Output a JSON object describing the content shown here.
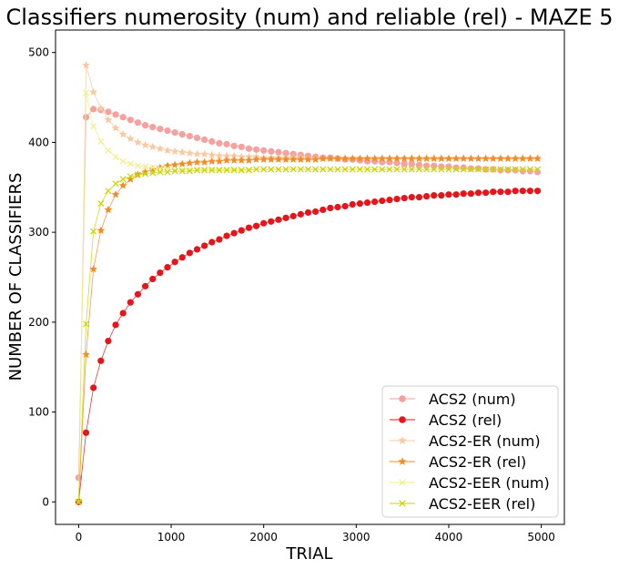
{
  "chart_data": {
    "type": "line",
    "title": "Classifiers numerosity (num) and reliable (rel) - MAZE 5",
    "xlabel": "TRIAL",
    "ylabel": "NUMBER OF CLASSIFIERS",
    "xlim": [
      -250,
      5250
    ],
    "ylim": [
      -25,
      525
    ],
    "xticks": [
      0,
      1000,
      2000,
      3000,
      4000,
      5000
    ],
    "yticks": [
      0,
      100,
      200,
      300,
      400,
      500
    ],
    "grid": false,
    "legend_position": "lower-right",
    "series": [
      {
        "name": "ACS2 (num)",
        "color": "#f4a19f",
        "marker": "circle",
        "x": [
          0,
          80,
          160,
          240,
          320,
          400,
          480,
          560,
          640,
          720,
          800,
          880,
          960,
          1040,
          1120,
          1200,
          1280,
          1360,
          1440,
          1520,
          1600,
          1680,
          1760,
          1840,
          1920,
          2000,
          2080,
          2160,
          2240,
          2320,
          2400,
          2480,
          2560,
          2640,
          2720,
          2800,
          2880,
          2960,
          3040,
          3120,
          3200,
          3280,
          3360,
          3440,
          3520,
          3600,
          3680,
          3760,
          3840,
          3920,
          4000,
          4080,
          4160,
          4240,
          4320,
          4400,
          4480,
          4560,
          4640,
          4720,
          4800,
          4880,
          4960
        ],
        "y": [
          27,
          428,
          437,
          436,
          434,
          431,
          428,
          425,
          422,
          419,
          417,
          415,
          413,
          411,
          409,
          407,
          405,
          403,
          401,
          399,
          398,
          396,
          395,
          393,
          392,
          391,
          390,
          389,
          388,
          387,
          386,
          385,
          384,
          383,
          383,
          382,
          381,
          381,
          380,
          379,
          379,
          378,
          378,
          377,
          376,
          376,
          375,
          374,
          374,
          373,
          373,
          372,
          372,
          371,
          371,
          370,
          370,
          369,
          369,
          369,
          368,
          368,
          367
        ]
      },
      {
        "name": "ACS2 (rel)",
        "color": "#e6141b",
        "marker": "circle",
        "x": [
          0,
          80,
          160,
          240,
          320,
          400,
          480,
          560,
          640,
          720,
          800,
          880,
          960,
          1040,
          1120,
          1200,
          1280,
          1360,
          1440,
          1520,
          1600,
          1680,
          1760,
          1840,
          1920,
          2000,
          2080,
          2160,
          2240,
          2320,
          2400,
          2480,
          2560,
          2640,
          2720,
          2800,
          2880,
          2960,
          3040,
          3120,
          3200,
          3280,
          3360,
          3440,
          3520,
          3600,
          3680,
          3760,
          3840,
          3920,
          4000,
          4080,
          4160,
          4240,
          4320,
          4400,
          4480,
          4560,
          4640,
          4720,
          4800,
          4880,
          4960
        ],
        "y": [
          0,
          77,
          127,
          157,
          179,
          197,
          210,
          222,
          231,
          240,
          248,
          255,
          261,
          267,
          272,
          277,
          281,
          285,
          289,
          292,
          296,
          299,
          302,
          305,
          307,
          310,
          312,
          314,
          316,
          318,
          320,
          322,
          323,
          325,
          327,
          328,
          329,
          331,
          332,
          333,
          334,
          335,
          336,
          337,
          338,
          339,
          339,
          340,
          341,
          341,
          342,
          342,
          343,
          343,
          344,
          344,
          345,
          345,
          345,
          346,
          346,
          346,
          346
        ]
      },
      {
        "name": "ACS2-ER (num)",
        "color": "#f9c9a0",
        "marker": "star",
        "x": [
          0,
          80,
          160,
          240,
          320,
          400,
          480,
          560,
          640,
          720,
          800,
          880,
          960,
          1040,
          1120,
          1200,
          1280,
          1360,
          1440,
          1520,
          1600,
          1680,
          1760,
          1840,
          1920,
          2000,
          2080,
          2160,
          2240,
          2320,
          2400,
          2480,
          2560,
          2640,
          2720,
          2800,
          2880,
          2960,
          3040,
          3120,
          3200,
          3280,
          3360,
          3440,
          3520,
          3600,
          3680,
          3760,
          3840,
          3920,
          4000,
          4080,
          4160,
          4240,
          4320,
          4400,
          4480,
          4560,
          4640,
          4720,
          4800,
          4880,
          4960
        ],
        "y": [
          0,
          486,
          456,
          438,
          425,
          416,
          409,
          404,
          400,
          397,
          395,
          393,
          391,
          390,
          389,
          388,
          387,
          387,
          386,
          385,
          385,
          385,
          384,
          384,
          384,
          383,
          383,
          383,
          383,
          383,
          383,
          382,
          382,
          382,
          382,
          382,
          382,
          382,
          382,
          382,
          382,
          382,
          382,
          382,
          382,
          382,
          382,
          382,
          382,
          382,
          382,
          382,
          382,
          382,
          382,
          382,
          382,
          382,
          382,
          382,
          382,
          382,
          382
        ]
      },
      {
        "name": "ACS2-ER (rel)",
        "color": "#f28c28",
        "marker": "star",
        "x": [
          0,
          80,
          160,
          240,
          320,
          400,
          480,
          560,
          640,
          720,
          800,
          880,
          960,
          1040,
          1120,
          1200,
          1280,
          1360,
          1440,
          1520,
          1600,
          1680,
          1760,
          1840,
          1920,
          2000,
          2080,
          2160,
          2240,
          2320,
          2400,
          2480,
          2560,
          2640,
          2720,
          2800,
          2880,
          2960,
          3040,
          3120,
          3200,
          3280,
          3360,
          3440,
          3520,
          3600,
          3680,
          3760,
          3840,
          3920,
          4000,
          4080,
          4160,
          4240,
          4320,
          4400,
          4480,
          4560,
          4640,
          4720,
          4800,
          4880,
          4960
        ],
        "y": [
          0,
          164,
          259,
          302,
          325,
          342,
          352,
          359,
          364,
          367,
          370,
          372,
          374,
          375,
          376,
          377,
          378,
          378,
          379,
          379,
          380,
          380,
          380,
          380,
          381,
          381,
          381,
          381,
          381,
          381,
          381,
          381,
          381,
          382,
          382,
          382,
          382,
          382,
          382,
          382,
          382,
          382,
          382,
          382,
          382,
          382,
          382,
          382,
          382,
          382,
          382,
          382,
          382,
          382,
          382,
          382,
          382,
          382,
          382,
          382,
          382,
          382,
          382
        ]
      },
      {
        "name": "ACS2-EER (num)",
        "color": "#eef08a",
        "marker": "x",
        "x": [
          0,
          80,
          160,
          240,
          320,
          400,
          480,
          560,
          640,
          720,
          800,
          880,
          960,
          1040,
          1120,
          1200,
          1280,
          1360,
          1440,
          1520,
          1600,
          1680,
          1760,
          1840,
          1920,
          2000,
          2080,
          2160,
          2240,
          2320,
          2400,
          2480,
          2560,
          2640,
          2720,
          2800,
          2880,
          2960,
          3040,
          3120,
          3200,
          3280,
          3360,
          3440,
          3520,
          3600,
          3680,
          3760,
          3840,
          3920,
          4000,
          4080,
          4160,
          4240,
          4320,
          4400,
          4480,
          4560,
          4640,
          4720,
          4800,
          4880,
          4960
        ],
        "y": [
          0,
          455,
          418,
          401,
          391,
          384,
          379,
          376,
          374,
          373,
          372,
          371,
          371,
          370,
          370,
          370,
          370,
          370,
          370,
          370,
          370,
          370,
          370,
          370,
          370,
          370,
          370,
          370,
          370,
          370,
          370,
          370,
          370,
          370,
          370,
          370,
          370,
          370,
          370,
          370,
          370,
          370,
          370,
          370,
          370,
          370,
          370,
          370,
          370,
          370,
          370,
          370,
          370,
          370,
          370,
          370,
          370,
          370,
          370,
          370,
          370,
          370,
          370
        ]
      },
      {
        "name": "ACS2-EER (rel)",
        "color": "#c8d400",
        "marker": "x",
        "x": [
          0,
          80,
          160,
          240,
          320,
          400,
          480,
          560,
          640,
          720,
          800,
          880,
          960,
          1040,
          1120,
          1200,
          1280,
          1360,
          1440,
          1520,
          1600,
          1680,
          1760,
          1840,
          1920,
          2000,
          2080,
          2160,
          2240,
          2320,
          2400,
          2480,
          2560,
          2640,
          2720,
          2800,
          2880,
          2960,
          3040,
          3120,
          3200,
          3280,
          3360,
          3440,
          3520,
          3600,
          3680,
          3760,
          3840,
          3920,
          4000,
          4080,
          4160,
          4240,
          4320,
          4400,
          4480,
          4560,
          4640,
          4720,
          4800,
          4880,
          4960
        ],
        "y": [
          0,
          198,
          301,
          332,
          346,
          354,
          359,
          362,
          364,
          365,
          366,
          367,
          367,
          368,
          368,
          368,
          369,
          369,
          369,
          369,
          369,
          369,
          369,
          369,
          370,
          370,
          370,
          370,
          370,
          370,
          370,
          370,
          370,
          370,
          370,
          370,
          370,
          370,
          370,
          370,
          370,
          370,
          370,
          370,
          370,
          370,
          370,
          370,
          370,
          370,
          370,
          370,
          370,
          370,
          370,
          370,
          370,
          370,
          370,
          370,
          370,
          370,
          370
        ]
      }
    ]
  }
}
